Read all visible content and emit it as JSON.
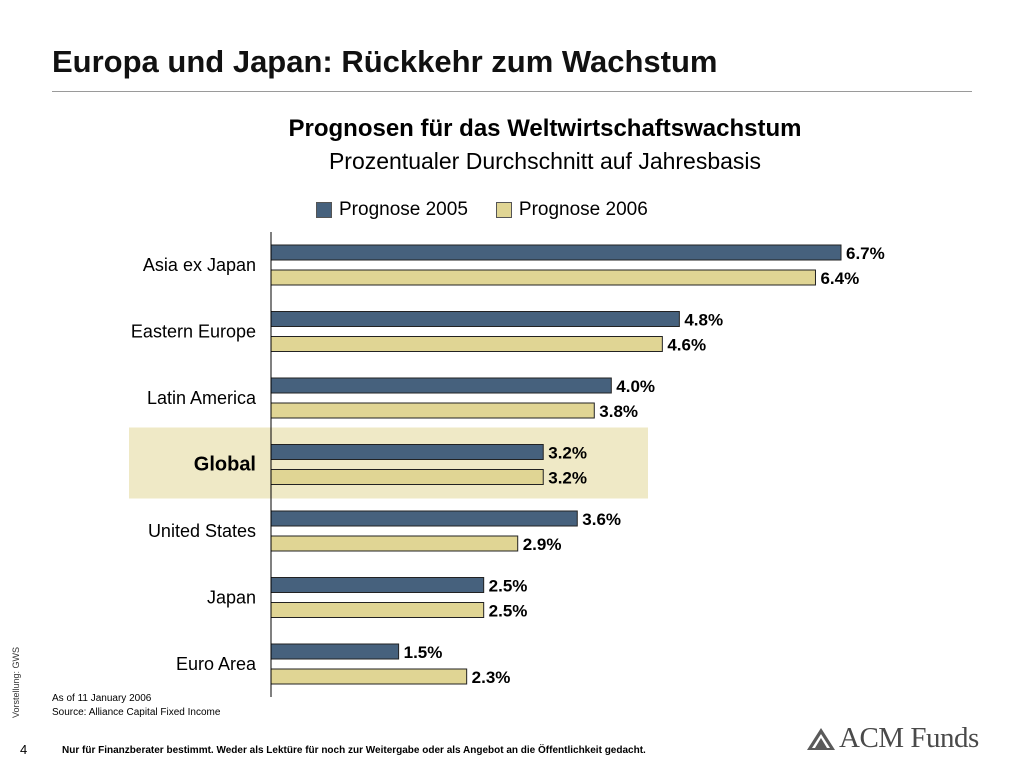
{
  "page": {
    "title": "Europa und Japan: Rückkehr zum Wachstum",
    "page_number": "4",
    "disclaimer": "Nur für Finanzberater bestimmt. Weder als Lektüre für noch zur Weitergabe oder als Angebot an die Öffentlichkeit gedacht.",
    "side_note": "Vorstellung: GWS",
    "footnote_date": "As of 11 January  2006",
    "footnote_source": "Source: Alliance Capital Fixed Income",
    "logo_text": "ACM Funds"
  },
  "chart_data": {
    "type": "bar",
    "orientation": "horizontal",
    "title": "Prognosen für das Weltwirtschaftswachstum",
    "subtitle": "Prozentualer Durchschnitt auf Jahresbasis",
    "categories": [
      "Asia ex Japan",
      "Eastern Europe",
      "Latin America",
      "Global",
      "United States",
      "Japan",
      "Euro Area"
    ],
    "highlighted_category": "Global",
    "series": [
      {
        "name": "Prognose 2005",
        "values": [
          6.7,
          4.8,
          4.0,
          3.2,
          3.6,
          2.5,
          1.5
        ],
        "labels": [
          "6.7%",
          "4.8%",
          "4.0%",
          "3.2%",
          "3.6%",
          "2.5%",
          "1.5%"
        ],
        "color": "#46617d"
      },
      {
        "name": "Prognose 2006",
        "values": [
          6.4,
          4.6,
          3.8,
          3.2,
          2.9,
          2.5,
          2.3
        ],
        "labels": [
          "6.4%",
          "4.6%",
          "3.8%",
          "3.2%",
          "2.9%",
          "2.5%",
          "2.3%"
        ],
        "color": "#e0d594"
      }
    ],
    "xlim": [
      0,
      7
    ],
    "highlight_color": "#efe9c6",
    "grid": false,
    "legend_position": "top"
  }
}
